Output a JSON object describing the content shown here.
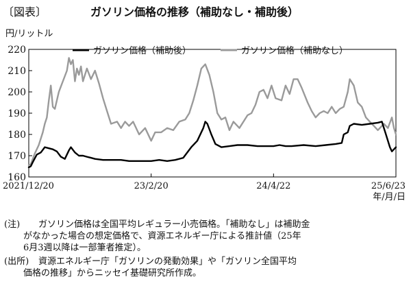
{
  "header": {
    "fig_label": "〔図表〕",
    "title": "ガソリン価格の推移（補助なし・補助後）"
  },
  "chart_data": {
    "type": "line",
    "ylabel": "円/リットル",
    "ylim": [
      160,
      220
    ],
    "yticks": [
      160,
      170,
      180,
      190,
      200,
      210,
      220
    ],
    "xlim": [
      "2021-12-20",
      "2025-06-23"
    ],
    "xticks": [
      {
        "date": "2021-12-20",
        "label": "2021/12/20"
      },
      {
        "date": "2023-02-20",
        "label": "23/2/20"
      },
      {
        "date": "2024-04-22",
        "label": "24/4/22"
      },
      {
        "date": "2025-06-23",
        "label": "25/6/23"
      }
    ],
    "xunit": "年/月/日",
    "legend_position": "top",
    "series": [
      {
        "name": "ガソリン価格（補助後）",
        "color": "#000000",
        "points": [
          [
            "2021-12-20",
            164.5
          ],
          [
            "2021-12-27",
            165
          ],
          [
            "2022-01-03",
            167
          ],
          [
            "2022-01-17",
            170.5
          ],
          [
            "2022-01-31",
            171.5
          ],
          [
            "2022-02-14",
            174
          ],
          [
            "2022-02-28",
            173.5
          ],
          [
            "2022-03-14",
            173
          ],
          [
            "2022-03-28",
            172
          ],
          [
            "2022-04-11",
            169.5
          ],
          [
            "2022-04-25",
            168.5
          ],
          [
            "2022-05-09",
            172.5
          ],
          [
            "2022-05-16",
            174
          ],
          [
            "2022-05-30",
            171.5
          ],
          [
            "2022-06-13",
            170
          ],
          [
            "2022-06-27",
            170
          ],
          [
            "2022-07-11",
            169.5
          ],
          [
            "2022-07-25",
            169
          ],
          [
            "2022-08-08",
            168.5
          ],
          [
            "2022-09-05",
            168
          ],
          [
            "2022-10-03",
            168
          ],
          [
            "2022-11-07",
            168
          ],
          [
            "2022-12-05",
            167.5
          ],
          [
            "2023-01-09",
            167.5
          ],
          [
            "2023-02-20",
            167.5
          ],
          [
            "2023-03-20",
            168
          ],
          [
            "2023-04-17",
            167.5
          ],
          [
            "2023-05-15",
            168
          ],
          [
            "2023-06-12",
            169
          ],
          [
            "2023-07-10",
            174
          ],
          [
            "2023-07-31",
            177
          ],
          [
            "2023-08-21",
            183
          ],
          [
            "2023-08-28",
            186
          ],
          [
            "2023-09-04",
            185
          ],
          [
            "2023-09-18",
            180
          ],
          [
            "2023-10-02",
            175.5
          ],
          [
            "2023-10-23",
            174
          ],
          [
            "2023-11-20",
            174.5
          ],
          [
            "2023-12-18",
            175
          ],
          [
            "2024-01-22",
            175
          ],
          [
            "2024-02-26",
            174.5
          ],
          [
            "2024-04-22",
            174.5
          ],
          [
            "2024-05-13",
            175
          ],
          [
            "2024-06-03",
            174.5
          ],
          [
            "2024-06-24",
            174.5
          ],
          [
            "2024-08-05",
            175
          ],
          [
            "2024-09-16",
            174.5
          ],
          [
            "2024-10-21",
            175
          ],
          [
            "2024-11-25",
            175.5
          ],
          [
            "2024-12-16",
            176
          ],
          [
            "2024-12-23",
            180
          ],
          [
            "2025-01-06",
            181
          ],
          [
            "2025-01-13",
            184
          ],
          [
            "2025-01-27",
            185
          ],
          [
            "2025-02-24",
            184.5
          ],
          [
            "2025-03-24",
            185
          ],
          [
            "2025-04-21",
            185.5
          ],
          [
            "2025-05-05",
            186
          ],
          [
            "2025-05-19",
            180
          ],
          [
            "2025-06-02",
            174
          ],
          [
            "2025-06-09",
            172
          ],
          [
            "2025-06-23",
            174
          ]
        ]
      },
      {
        "name": "ガソリン価格（補助なし）",
        "color": "#9a9a9a",
        "points": [
          [
            "2021-12-20",
            165.5
          ],
          [
            "2021-12-27",
            166
          ],
          [
            "2022-01-10",
            171
          ],
          [
            "2022-01-24",
            175
          ],
          [
            "2022-02-07",
            181
          ],
          [
            "2022-02-14",
            185
          ],
          [
            "2022-02-21",
            188
          ],
          [
            "2022-02-28",
            196
          ],
          [
            "2022-03-07",
            203
          ],
          [
            "2022-03-14",
            193
          ],
          [
            "2022-03-21",
            192
          ],
          [
            "2022-04-04",
            200
          ],
          [
            "2022-04-18",
            205
          ],
          [
            "2022-05-02",
            210
          ],
          [
            "2022-05-09",
            216
          ],
          [
            "2022-05-16",
            213
          ],
          [
            "2022-05-23",
            215
          ],
          [
            "2022-05-30",
            205
          ],
          [
            "2022-06-06",
            211
          ],
          [
            "2022-06-13",
            208
          ],
          [
            "2022-06-20",
            212
          ],
          [
            "2022-06-27",
            205
          ],
          [
            "2022-07-11",
            211
          ],
          [
            "2022-07-25",
            206
          ],
          [
            "2022-08-08",
            210
          ],
          [
            "2022-08-22",
            204
          ],
          [
            "2022-09-05",
            197
          ],
          [
            "2022-09-19",
            191
          ],
          [
            "2022-10-03",
            185
          ],
          [
            "2022-10-24",
            186
          ],
          [
            "2022-11-07",
            183
          ],
          [
            "2022-11-21",
            186
          ],
          [
            "2022-12-05",
            184
          ],
          [
            "2022-12-19",
            186
          ],
          [
            "2023-01-09",
            180
          ],
          [
            "2023-01-30",
            183
          ],
          [
            "2023-02-20",
            177
          ],
          [
            "2023-03-06",
            181
          ],
          [
            "2023-03-27",
            181
          ],
          [
            "2023-04-17",
            183
          ],
          [
            "2023-05-08",
            182
          ],
          [
            "2023-05-29",
            186
          ],
          [
            "2023-06-19",
            187
          ],
          [
            "2023-07-03",
            190
          ],
          [
            "2023-07-17",
            196
          ],
          [
            "2023-07-31",
            203
          ],
          [
            "2023-08-14",
            211
          ],
          [
            "2023-08-28",
            213
          ],
          [
            "2023-09-11",
            208
          ],
          [
            "2023-09-25",
            200
          ],
          [
            "2023-10-09",
            190
          ],
          [
            "2023-10-23",
            187
          ],
          [
            "2023-11-06",
            188
          ],
          [
            "2023-11-20",
            182
          ],
          [
            "2023-12-04",
            186
          ],
          [
            "2023-12-25",
            183
          ],
          [
            "2024-01-22",
            189
          ],
          [
            "2024-02-05",
            190
          ],
          [
            "2024-02-19",
            194
          ],
          [
            "2024-03-04",
            200
          ],
          [
            "2024-03-18",
            201
          ],
          [
            "2024-04-01",
            197
          ],
          [
            "2024-04-15",
            203
          ],
          [
            "2024-04-29",
            197
          ],
          [
            "2024-05-20",
            196
          ],
          [
            "2024-06-03",
            203
          ],
          [
            "2024-06-17",
            199
          ],
          [
            "2024-07-01",
            206
          ],
          [
            "2024-07-15",
            206
          ],
          [
            "2024-07-29",
            202
          ],
          [
            "2024-08-19",
            195
          ],
          [
            "2024-09-02",
            191
          ],
          [
            "2024-09-16",
            188
          ],
          [
            "2024-09-30",
            190
          ],
          [
            "2024-10-14",
            191
          ],
          [
            "2024-10-28",
            190
          ],
          [
            "2024-11-11",
            193
          ],
          [
            "2024-11-25",
            190
          ],
          [
            "2024-12-09",
            192
          ],
          [
            "2024-12-23",
            193
          ],
          [
            "2025-01-06",
            200
          ],
          [
            "2025-01-13",
            206
          ],
          [
            "2025-01-27",
            203
          ],
          [
            "2025-02-10",
            195
          ],
          [
            "2025-02-24",
            193
          ],
          [
            "2025-03-10",
            188
          ],
          [
            "2025-03-24",
            186
          ],
          [
            "2025-04-07",
            184
          ],
          [
            "2025-04-21",
            182
          ],
          [
            "2025-05-12",
            185
          ],
          [
            "2025-05-26",
            183
          ],
          [
            "2025-06-09",
            188
          ],
          [
            "2025-06-16",
            183
          ],
          [
            "2025-06-23",
            180
          ]
        ]
      }
    ]
  },
  "notes": {
    "note_key": "(注)",
    "note_line1": "ガソリン価格は全国平均レギュラー小売価格。「補助なし」は補助金",
    "note_line2": "がなかった場合の想定価格で、資源エネルギー庁による推計値（25年",
    "note_line3": "6月3週以降は一部筆者推定）。",
    "source_key": "(出所)",
    "source_line1": "資源エネルギー庁「ガソリンの発動効果」や「ガソリン全国平均",
    "source_line2": "価格の推移」からニッセイ基礎研究所作成。"
  }
}
